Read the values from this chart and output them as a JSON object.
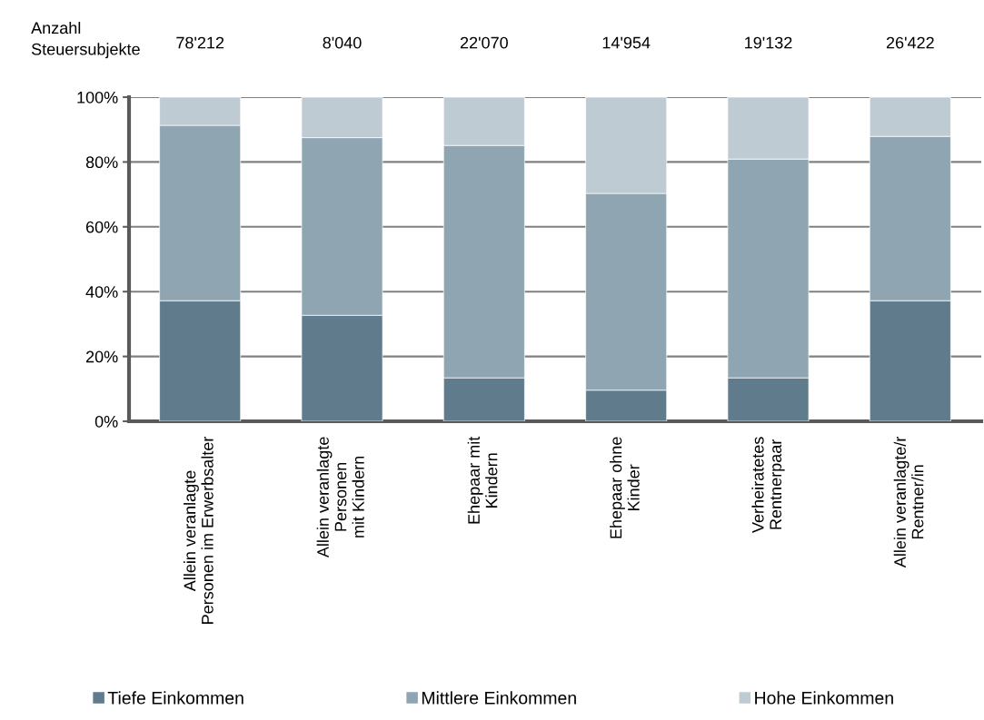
{
  "chart_data": {
    "type": "bar",
    "stacked": true,
    "categories": [
      "Allein veranlagte\nPersonen im Erwerbsalter",
      "Allein veranlagte\nPersonen\nmit Kindern",
      "Ehepaar mit\nKindern",
      "Ehepaar ohne\nKinder",
      "Verheiratetes\nRentnerpaar",
      "Allein veranlagte/r\nRentner/in"
    ],
    "series": [
      {
        "name": "Tiefe Einkommen",
        "color": "#5f7b8c",
        "values": [
          37.2,
          32.7,
          13.4,
          9.6,
          13.4,
          37.2
        ]
      },
      {
        "name": "Mittlere Einkommen",
        "color": "#8fa5b1",
        "values": [
          54.1,
          54.8,
          71.7,
          60.7,
          67.5,
          50.7
        ]
      },
      {
        "name": "Hohe Einkommen",
        "color": "#bfcbd3",
        "values": [
          8.7,
          12.5,
          14.9,
          29.7,
          19.1,
          12.1
        ]
      }
    ],
    "ylim": [
      0,
      100
    ],
    "yticks": [
      {
        "value": 0,
        "label": "0%"
      },
      {
        "value": 20,
        "label": "20%"
      },
      {
        "value": 40,
        "label": "40%"
      },
      {
        "value": 60,
        "label": "60%"
      },
      {
        "value": 80,
        "label": "80%"
      },
      {
        "value": 100,
        "label": "100%"
      }
    ],
    "grid": "y",
    "legend": "bottom",
    "annotations": [
      "Anzahl\nSteuersubjekte",
      "78'212",
      "8'040",
      "22'070",
      "14'954",
      "19'132",
      "26'422"
    ]
  }
}
